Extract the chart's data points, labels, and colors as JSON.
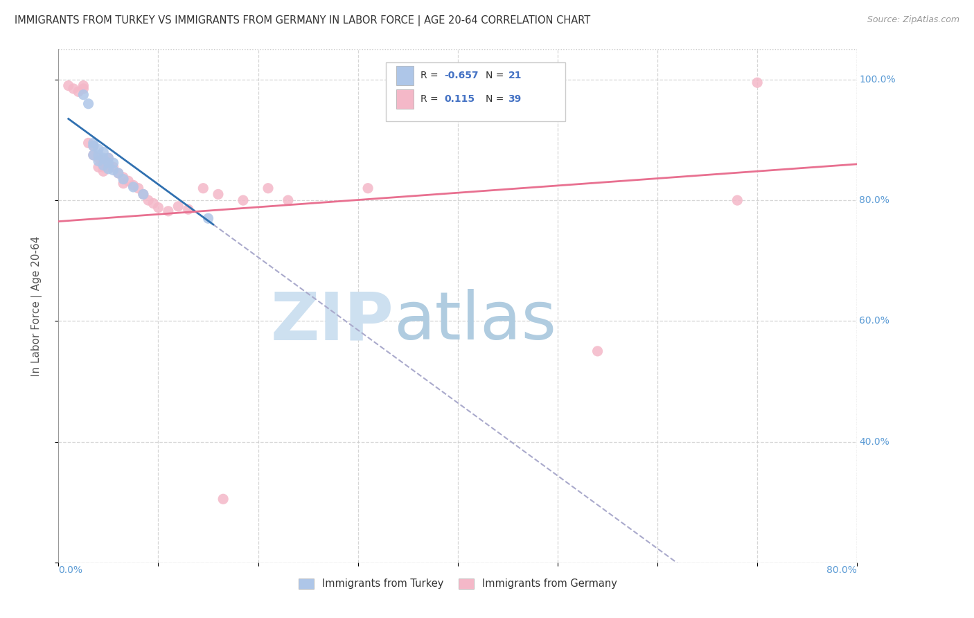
{
  "title": "IMMIGRANTS FROM TURKEY VS IMMIGRANTS FROM GERMANY IN LABOR FORCE | AGE 20-64 CORRELATION CHART",
  "source": "Source: ZipAtlas.com",
  "ylabel": "In Labor Force | Age 20-64",
  "xlim": [
    0.0,
    0.8
  ],
  "ylim": [
    0.2,
    1.05
  ],
  "legend_r_turkey": "-0.657",
  "legend_n_turkey": "21",
  "legend_r_germany": "0.115",
  "legend_n_germany": "39",
  "turkey_color": "#aec6e8",
  "germany_color": "#f4b8c8",
  "germany_line_color": "#e87090",
  "turkey_trendline": [
    [
      0.01,
      0.935
    ],
    [
      0.155,
      0.76
    ]
  ],
  "germany_trendline": [
    [
      0.0,
      0.765
    ],
    [
      0.8,
      0.86
    ]
  ],
  "background_color": "#ffffff",
  "grid_color": "#cccccc",
  "turkey_scatter": [
    [
      0.025,
      0.975
    ],
    [
      0.03,
      0.96
    ],
    [
      0.035,
      0.895
    ],
    [
      0.035,
      0.89
    ],
    [
      0.035,
      0.875
    ],
    [
      0.04,
      0.885
    ],
    [
      0.04,
      0.875
    ],
    [
      0.04,
      0.865
    ],
    [
      0.045,
      0.88
    ],
    [
      0.045,
      0.87
    ],
    [
      0.045,
      0.858
    ],
    [
      0.05,
      0.87
    ],
    [
      0.05,
      0.862
    ],
    [
      0.05,
      0.852
    ],
    [
      0.055,
      0.862
    ],
    [
      0.055,
      0.85
    ],
    [
      0.06,
      0.845
    ],
    [
      0.065,
      0.835
    ],
    [
      0.075,
      0.822
    ],
    [
      0.085,
      0.81
    ],
    [
      0.15,
      0.77
    ]
  ],
  "germany_scatter": [
    [
      0.01,
      0.99
    ],
    [
      0.015,
      0.985
    ],
    [
      0.02,
      0.98
    ],
    [
      0.025,
      0.99
    ],
    [
      0.025,
      0.985
    ],
    [
      0.03,
      0.895
    ],
    [
      0.035,
      0.89
    ],
    [
      0.035,
      0.875
    ],
    [
      0.04,
      0.87
    ],
    [
      0.04,
      0.855
    ],
    [
      0.045,
      0.862
    ],
    [
      0.045,
      0.855
    ],
    [
      0.045,
      0.848
    ],
    [
      0.05,
      0.87
    ],
    [
      0.05,
      0.858
    ],
    [
      0.055,
      0.855
    ],
    [
      0.06,
      0.845
    ],
    [
      0.065,
      0.838
    ],
    [
      0.065,
      0.828
    ],
    [
      0.07,
      0.832
    ],
    [
      0.075,
      0.825
    ],
    [
      0.08,
      0.82
    ],
    [
      0.085,
      0.81
    ],
    [
      0.09,
      0.8
    ],
    [
      0.095,
      0.795
    ],
    [
      0.1,
      0.788
    ],
    [
      0.11,
      0.782
    ],
    [
      0.12,
      0.79
    ],
    [
      0.13,
      0.785
    ],
    [
      0.145,
      0.82
    ],
    [
      0.16,
      0.81
    ],
    [
      0.185,
      0.8
    ],
    [
      0.21,
      0.82
    ],
    [
      0.23,
      0.8
    ],
    [
      0.31,
      0.82
    ],
    [
      0.54,
      0.55
    ],
    [
      0.68,
      0.8
    ],
    [
      0.7,
      0.995
    ],
    [
      0.165,
      0.305
    ]
  ]
}
